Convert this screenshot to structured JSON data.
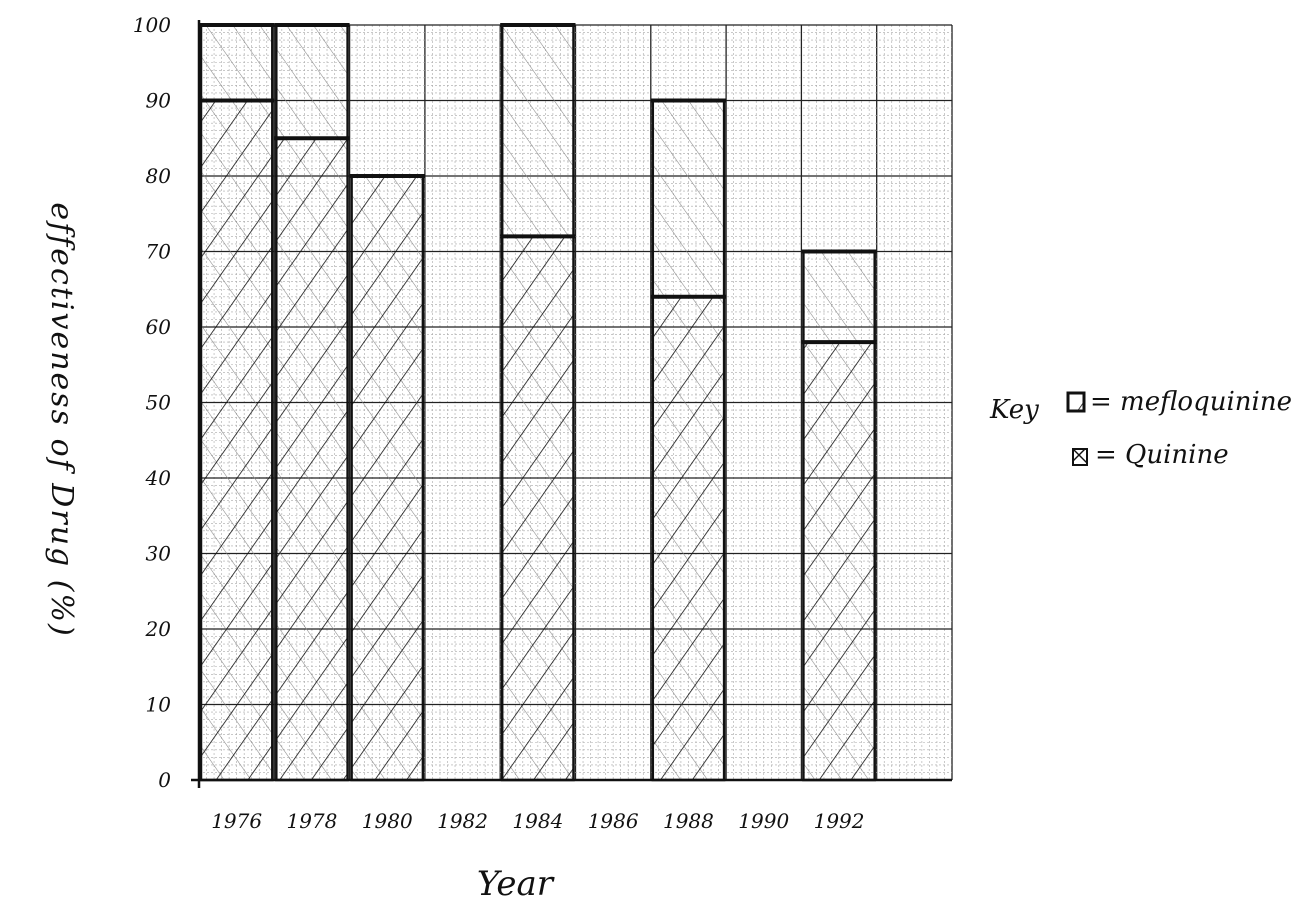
{
  "chart_data": {
    "type": "bar",
    "title": "",
    "xlabel": "Year",
    "ylabel": "effectiveness of Drug (%)",
    "ylim": [
      0,
      100
    ],
    "y_ticks": [
      "0",
      "10",
      "20",
      "30",
      "40",
      "50",
      "60",
      "70",
      "80",
      "90",
      "100"
    ],
    "categories": [
      "1976",
      "1978",
      "1980",
      "1982",
      "1984",
      "1986",
      "1988",
      "1990",
      "1992"
    ],
    "grid": true,
    "legend_position": "right",
    "series": [
      {
        "name": "Mefloquinine",
        "values": [
          90,
          85,
          80,
          0,
          72,
          0,
          64,
          0,
          58
        ]
      },
      {
        "name": "Quinine",
        "values": [
          100,
          100,
          80,
          0,
          100,
          0,
          90,
          0,
          70
        ]
      }
    ]
  },
  "key": {
    "label": "Key",
    "entry_1": "= mefloquinine",
    "entry_2": "= Quinine"
  },
  "colors": {
    "ink": "#111111",
    "grid_minor": "#9a9a9a",
    "grid_major": "#222222"
  }
}
